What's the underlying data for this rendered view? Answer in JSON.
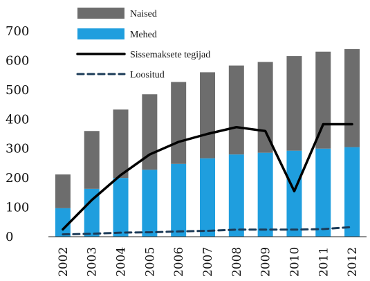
{
  "chart_data": {
    "type": "bar",
    "stacked": true,
    "categories": [
      "2002",
      "2003",
      "2004",
      "2005",
      "2006",
      "2007",
      "2008",
      "2009",
      "2010",
      "2011",
      "2012"
    ],
    "series": [
      {
        "name": "Mehed",
        "kind": "bar",
        "color": "#1f9ede",
        "values": [
          97,
          163,
          200,
          228,
          248,
          267,
          280,
          286,
          293,
          300,
          305
        ]
      },
      {
        "name": "Naised",
        "kind": "bar",
        "color": "#6d6d6d",
        "values": [
          115,
          197,
          233,
          257,
          279,
          293,
          303,
          309,
          322,
          330,
          334
        ]
      },
      {
        "name": "Sissemaksete tegijad",
        "kind": "line",
        "style": "solid",
        "color": "#000000",
        "values": [
          25,
          125,
          210,
          280,
          323,
          350,
          373,
          360,
          155,
          383,
          383
        ]
      },
      {
        "name": "Loositud",
        "kind": "line",
        "style": "dashed",
        "color": "#1b3a57",
        "values": [
          8,
          10,
          14,
          15,
          18,
          20,
          24,
          24,
          24,
          26,
          33
        ]
      }
    ],
    "legend_order": [
      "Naised",
      "Mehed",
      "Sissemaksete tegijad",
      "Loositud"
    ],
    "legend_position": "top-left",
    "yticks": [
      "0",
      "100",
      "200",
      "300",
      "400",
      "500",
      "600",
      "700"
    ],
    "ylim": [
      0,
      700
    ],
    "grid": false,
    "title": "",
    "xlabel": "",
    "ylabel": ""
  }
}
